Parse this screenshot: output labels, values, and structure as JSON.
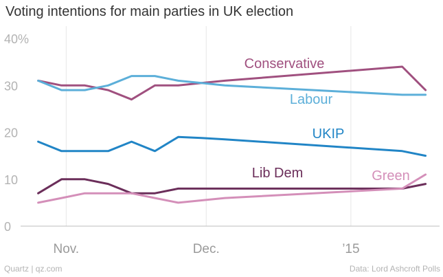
{
  "chart_data": {
    "type": "line",
    "title": "Voting intentions for main parties in UK election",
    "xlabel": "",
    "ylabel": "",
    "ylim": [
      0,
      40
    ],
    "yticks": [
      {
        "value": 0,
        "label": "0"
      },
      {
        "value": 10,
        "label": "10"
      },
      {
        "value": 20,
        "label": "20"
      },
      {
        "value": 30,
        "label": "30"
      },
      {
        "value": 40,
        "label": "40%"
      }
    ],
    "xticks": [
      "Nov.",
      "Dec.",
      "’15"
    ],
    "xlim_days": [
      -8,
      80
    ],
    "xtick_days": [
      0,
      30,
      61
    ],
    "grid": "vertical",
    "series": [
      {
        "name": "Conservative",
        "color": "#a0507f",
        "days": [
          -6,
          -1,
          4,
          9,
          14,
          19,
          24,
          29,
          34,
          72,
          77
        ],
        "values": [
          31,
          30,
          30,
          29,
          27,
          30,
          30,
          30.5,
          31,
          34,
          29
        ]
      },
      {
        "name": "Labour",
        "color": "#5cafd9",
        "days": [
          -6,
          -1,
          4,
          9,
          14,
          19,
          24,
          29,
          34,
          72,
          77
        ],
        "values": [
          31,
          29,
          29,
          30,
          32,
          32,
          31,
          30.5,
          30,
          28,
          28
        ]
      },
      {
        "name": "UKIP",
        "color": "#2185c6",
        "days": [
          -6,
          -1,
          4,
          9,
          14,
          19,
          24,
          29,
          34,
          72,
          77
        ],
        "values": [
          18,
          16,
          16,
          16,
          18,
          16,
          19,
          18.8,
          18.5,
          16,
          15
        ]
      },
      {
        "name": "Lib Dem",
        "color": "#6b2e5a",
        "days": [
          -6,
          -1,
          4,
          9,
          14,
          19,
          24,
          29,
          34,
          72,
          77
        ],
        "values": [
          7,
          10,
          10,
          9,
          7,
          7,
          8,
          8,
          8,
          8,
          9
        ]
      },
      {
        "name": "Green",
        "color": "#d48fb9",
        "days": [
          -6,
          -1,
          4,
          9,
          14,
          19,
          24,
          29,
          34,
          72,
          77
        ],
        "values": [
          5,
          6,
          7,
          7,
          7,
          6,
          5,
          5.5,
          6,
          8,
          11
        ]
      }
    ]
  },
  "footer": {
    "source_left": "Quartz | qz.com",
    "source_right": "Data: Lord Ashcroft Polls"
  }
}
